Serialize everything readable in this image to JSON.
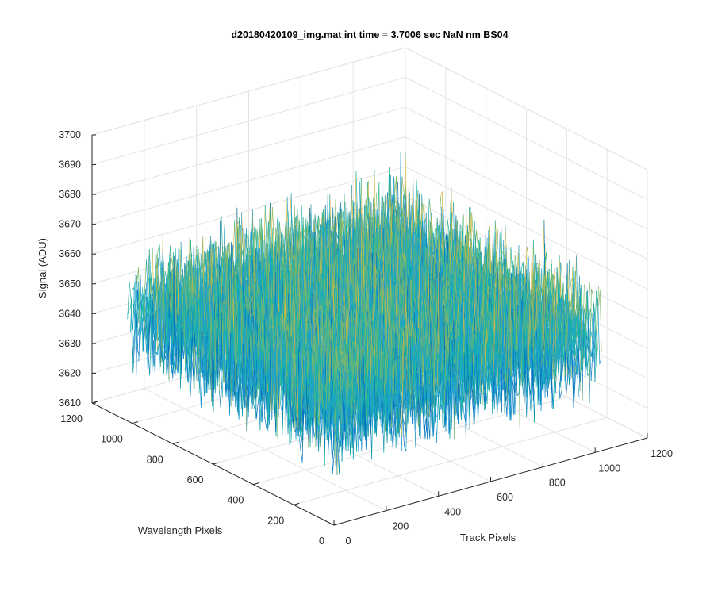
{
  "chart_data": {
    "type": "surface-3d",
    "title": "d20180420109_img.mat int time = 3.7006 sec  NaN nm BS04",
    "xlabel": "Track Pixels",
    "ylabel": "Wavelength Pixels",
    "zlabel": "Signal (ADU)",
    "xlim": [
      0,
      1200
    ],
    "ylim": [
      0,
      1200
    ],
    "zlim": [
      3610,
      3700
    ],
    "x_ticks": [
      0,
      200,
      400,
      600,
      800,
      1000,
      1200
    ],
    "y_ticks": [
      0,
      200,
      400,
      600,
      800,
      1000,
      1200
    ],
    "z_ticks": [
      3610,
      3620,
      3630,
      3640,
      3650,
      3660,
      3670,
      3680,
      3690,
      3700
    ],
    "grid": true,
    "data_extent": {
      "x": [
        0,
        1024
      ],
      "y": [
        0,
        1024
      ]
    },
    "signal": {
      "mean": 3648,
      "min": 3625,
      "max": 3690
    },
    "colormap": [
      "#0072bd",
      "#1f9fd3",
      "#19b2a8",
      "#7fb86a",
      "#d6b93f",
      "#edc232"
    ]
  }
}
